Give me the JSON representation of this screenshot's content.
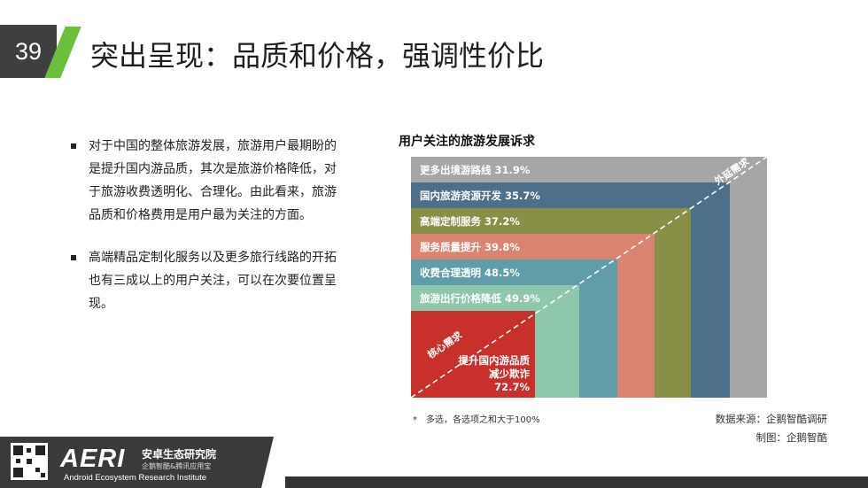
{
  "slide": {
    "number": "39",
    "title": "突出呈现：品质和价格，强调性价比"
  },
  "bullets": [
    "对于中国的整体旅游发展，旅游用户最期盼的是提升国内游品质，其次是旅游价格降低，对于旅游收费透明化、合理化。由此看来，旅游品质和价格费用是用户最为关注的方面。",
    "高端精品定制化服务以及更多旅行线路的开拓也有三成以上的用户关注，可以在次要位置呈现。"
  ],
  "chart_data": {
    "type": "bar",
    "title": "用户关注的旅游发展诉求",
    "categories": [
      "更多出境游路线",
      "国内旅游资源开发",
      "高端定制服务",
      "服务质量提升",
      "收费合理透明",
      "旅游出行价格降低",
      "提升国内游品质减少欺诈"
    ],
    "values": [
      31.9,
      35.7,
      37.2,
      39.8,
      48.5,
      49.9,
      72.7
    ],
    "labels": [
      "更多出境游路线 31.9%",
      "国内旅游资源开发 35.7%",
      "高端定制服务 37.2%",
      "服务质量提升 39.8%",
      "收费合理透明 48.5%",
      "旅游出行价格降低 49.9%"
    ],
    "core_label": [
      "提升国内游品质",
      "减少欺诈",
      "72.7%"
    ],
    "colors": [
      "#a6a6a6",
      "#4d6f8a",
      "#8a8f47",
      "#d98470",
      "#5f9ea8",
      "#8fc7ad",
      "#c8312b"
    ],
    "annotations": {
      "outer": "外延需求",
      "core": "核心需求"
    }
  },
  "footnote": "*　多选，各选项之和大于100%",
  "source": [
    "数据来源：企鹅智酷调研",
    "制图：企鹅智酷"
  ],
  "footer": {
    "logo": "AERI",
    "org_cn": "安卓生态研究院",
    "org_sub": "企鹅智酷&腾讯应用宝",
    "org_en": "Android Ecosystem Research Institute"
  }
}
